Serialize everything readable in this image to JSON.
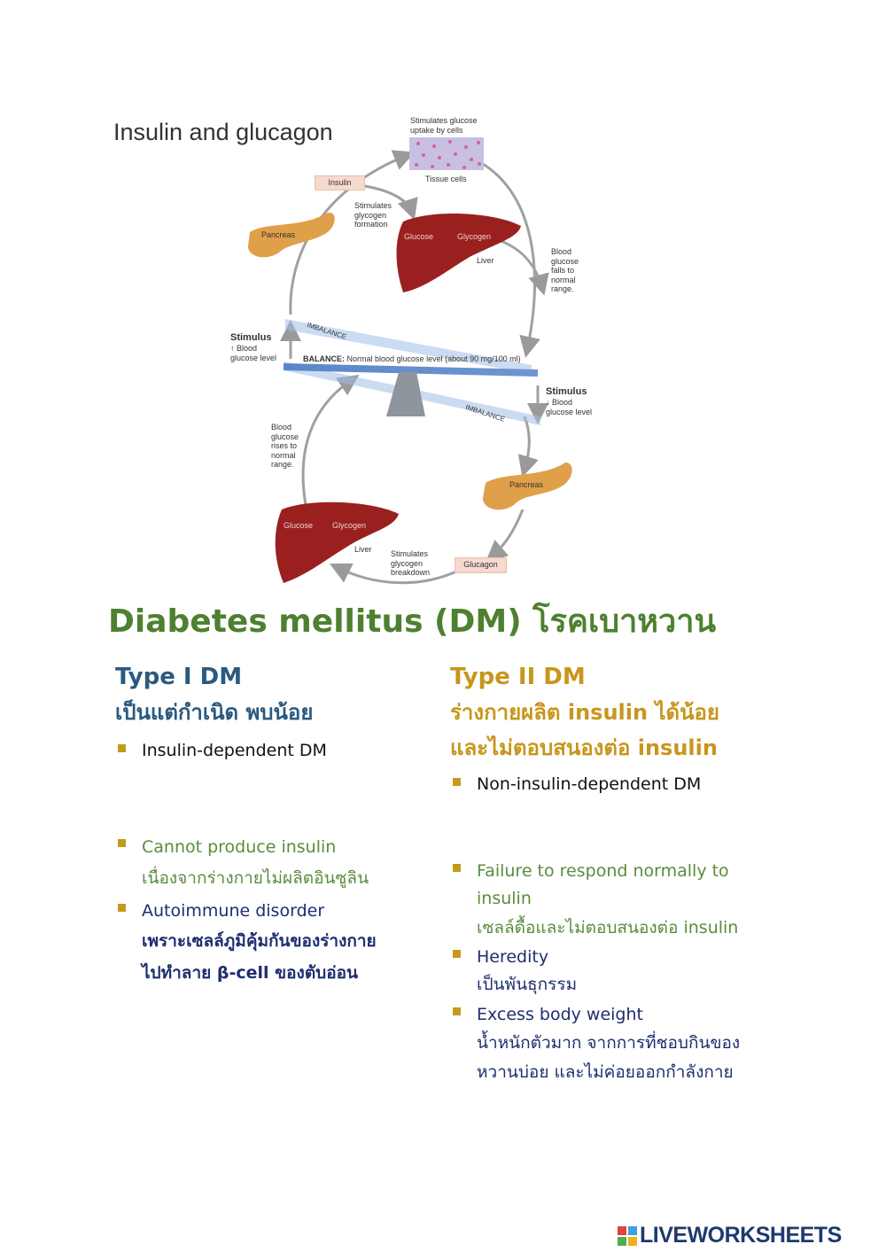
{
  "diagram": {
    "title": "Insulin and glucagon",
    "labels": {
      "stim_uptake": "Stimulates glucose uptake by cells",
      "tissue_cells": "Tissue cells",
      "insulin": "Insulin",
      "pancreas_top": "Pancreas",
      "stim_formation": "Stimulates glycogen formation",
      "glucose_top": "Glucose",
      "glycogen_top": "Glycogen",
      "liver_top": "Liver",
      "falls": "Blood glucose falls to normal range.",
      "imbalance_top": "IMBALANCE",
      "stimulus_up_title": "Stimulus",
      "stimulus_up_text": "↑ Blood glucose level",
      "balance_bold": "BALANCE:",
      "balance_text": "Normal blood glucose level (about 90 mg/100 ml)",
      "stimulus_down_title": "Stimulus",
      "stimulus_down_text": "↓ Blood glucose level",
      "imbalance_bottom": "IMBALANCE",
      "rises": "Blood glucose rises to normal range.",
      "pancreas_bottom": "Pancreas",
      "glucose_bottom": "Glucose",
      "glycogen_bottom": "Glycogen",
      "liver_bottom": "Liver",
      "stim_breakdown": "Stimulates glycogen breakdown",
      "glucagon": "Glucagon"
    }
  },
  "heading": "Diabetes mellitus (DM) โรคเบาหวาน",
  "type1": {
    "title": "Type I DM",
    "subtitle": "เป็นแต่กำเนิด พบน้อย",
    "items": [
      {
        "en": "Insulin-dependent DM"
      },
      {
        "en": "Cannot produce insulin",
        "th": "เนื่องจากร่างกายไม่ผลิตอินซูลิน"
      },
      {
        "en": "Autoimmune disorder",
        "th1": "เพราะเซลล์ภูมิคุ้มกันของร่างกาย",
        "th2": "ไปทำลาย β-cell ของตับอ่อน"
      }
    ]
  },
  "type2": {
    "title": "Type II DM",
    "subtitle1": "ร่างกายผลิต insulin ได้น้อย",
    "subtitle2": "และไม่ตอบสนองต่อ insulin",
    "items": [
      {
        "en": "Non-insulin-dependent DM"
      },
      {
        "en1": "Failure to respond normally to",
        "en2": "insulin",
        "th": "เซลล์ดื้อและไม่ตอบสนองต่อ insulin"
      },
      {
        "en": "Heredity",
        "th": "เป็นพันธุกรรม"
      },
      {
        "en": "Excess body weight",
        "th1": "น้ำหนักตัวมาก จากการที่ชอบกินของ",
        "th2": "หวานบ่อย และไม่ค่อยออกกำลังกาย"
      }
    ]
  },
  "logo": "LIVEWORKSHEETS",
  "colors": {
    "heading": "#4e8030",
    "type1": "#2a5a80",
    "type2": "#c8961c",
    "bullet": "#c49a1c",
    "green_text": "#5a8c3e",
    "navy_text": "#1e2e70"
  }
}
